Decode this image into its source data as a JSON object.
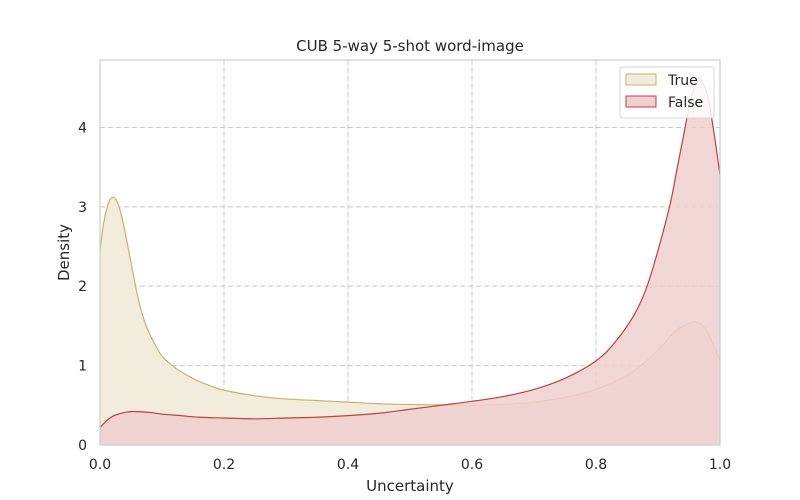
{
  "chart_data": {
    "type": "area",
    "title": "CUB 5-way 5-shot word-image",
    "xlabel": "Uncertainty",
    "ylabel": "Density",
    "xlim": [
      0.0,
      1.0
    ],
    "ylim": [
      0,
      4.85
    ],
    "xticks": [
      "0.0",
      "0.2",
      "0.4",
      "0.6",
      "0.8",
      "1.0"
    ],
    "xtick_values": [
      0.0,
      0.2,
      0.4,
      0.6,
      0.8,
      1.0
    ],
    "yticks": [
      "0",
      "1",
      "2",
      "3",
      "4"
    ],
    "ytick_values": [
      0,
      1,
      2,
      3,
      4
    ],
    "grid": true,
    "legend_position": "top-right",
    "series": [
      {
        "name": "True",
        "fill": "#f2ecdc",
        "stroke": "#c8b266",
        "x": [
          0.0,
          0.005,
          0.01,
          0.015,
          0.02,
          0.025,
          0.03,
          0.035,
          0.04,
          0.05,
          0.06,
          0.07,
          0.08,
          0.09,
          0.1,
          0.12,
          0.14,
          0.16,
          0.18,
          0.2,
          0.25,
          0.3,
          0.35,
          0.4,
          0.45,
          0.5,
          0.55,
          0.6,
          0.65,
          0.7,
          0.75,
          0.8,
          0.85,
          0.88,
          0.91,
          0.93,
          0.95,
          0.96,
          0.97,
          0.98,
          0.99,
          1.0
        ],
        "y": [
          2.45,
          2.75,
          2.95,
          3.07,
          3.12,
          3.1,
          3.02,
          2.88,
          2.7,
          2.3,
          1.9,
          1.6,
          1.4,
          1.25,
          1.12,
          0.98,
          0.88,
          0.8,
          0.74,
          0.69,
          0.62,
          0.58,
          0.56,
          0.54,
          0.52,
          0.51,
          0.505,
          0.5,
          0.51,
          0.54,
          0.6,
          0.7,
          0.88,
          1.05,
          1.28,
          1.45,
          1.53,
          1.55,
          1.52,
          1.42,
          1.25,
          1.06
        ]
      },
      {
        "name": "False",
        "fill": "#efcfcf",
        "stroke": "#c0403f",
        "x": [
          0.0,
          0.01,
          0.02,
          0.03,
          0.04,
          0.05,
          0.06,
          0.08,
          0.1,
          0.13,
          0.16,
          0.2,
          0.25,
          0.3,
          0.35,
          0.4,
          0.45,
          0.5,
          0.55,
          0.6,
          0.65,
          0.7,
          0.75,
          0.8,
          0.83,
          0.86,
          0.88,
          0.9,
          0.92,
          0.93,
          0.94,
          0.95,
          0.96,
          0.965,
          0.97,
          0.98,
          0.99,
          1.0
        ],
        "y": [
          0.22,
          0.3,
          0.36,
          0.39,
          0.41,
          0.42,
          0.42,
          0.41,
          0.39,
          0.37,
          0.35,
          0.34,
          0.33,
          0.34,
          0.35,
          0.37,
          0.4,
          0.45,
          0.5,
          0.55,
          0.61,
          0.7,
          0.84,
          1.06,
          1.29,
          1.62,
          1.95,
          2.45,
          3.05,
          3.45,
          3.85,
          4.25,
          4.55,
          4.62,
          4.6,
          4.4,
          3.95,
          3.4
        ]
      }
    ]
  }
}
